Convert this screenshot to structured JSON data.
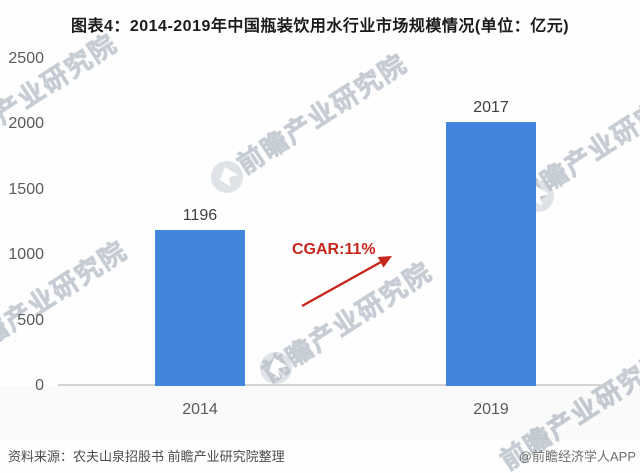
{
  "title": "图表4：2014-2019年中国瓶装饮用水行业市场规模情况(单位：亿元)",
  "chart_data": {
    "type": "bar",
    "categories": [
      "2014",
      "2019"
    ],
    "values": [
      1196,
      2017
    ],
    "title": "图表4：2014-2019年中国瓶装饮用水行业市场规模情况(单位：亿元)",
    "xlabel": "",
    "ylabel": "",
    "unit": "亿元",
    "ylim": [
      0,
      2500
    ],
    "yticks": [
      0,
      500,
      1000,
      1500,
      2000,
      2500
    ],
    "grid": false,
    "legend": "none",
    "bar_color": "#4285DF",
    "annotation": {
      "label": "CGAR:11%",
      "color": "#C8251B"
    }
  },
  "watermark": {
    "text": "前瞻产业研究院",
    "subtext": "· · · · · · · · · · · · · ·"
  },
  "footer": {
    "source": "资料来源：农夫山泉招股书 前瞻产业研究院整理",
    "credit": "@前瞻经济学人APP"
  }
}
